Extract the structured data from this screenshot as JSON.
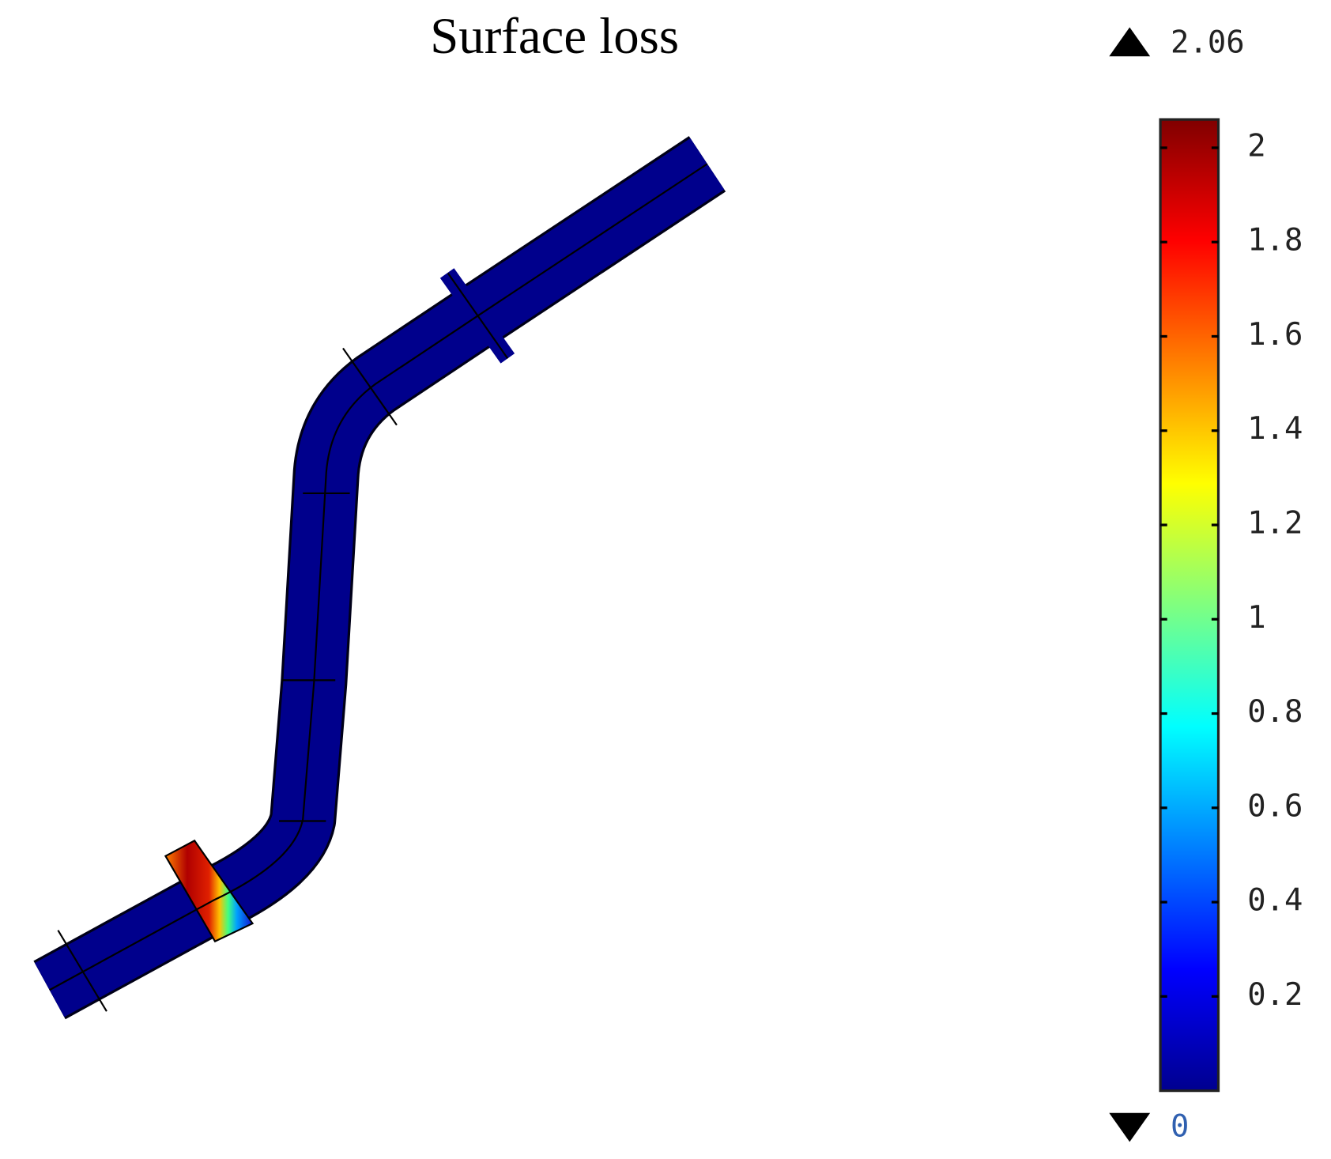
{
  "chart_data": {
    "type": "surface",
    "title": "Surface loss",
    "colormap": "jet",
    "colorbar": {
      "max": 2.06,
      "min": 0,
      "lim": [
        0,
        2.06
      ],
      "ticks": [
        0.2,
        0.4,
        0.6,
        0.8,
        1,
        1.2,
        1.4,
        1.6,
        1.8,
        2
      ]
    }
  }
}
